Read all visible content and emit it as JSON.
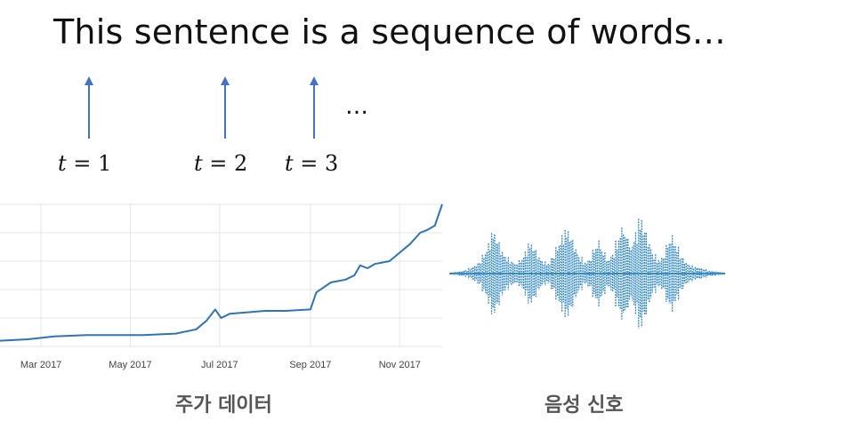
{
  "headline": "This sentence is a sequence of words…",
  "ellipsis": "…",
  "timesteps": [
    {
      "var": "t",
      "eq": " = 1"
    },
    {
      "var": "t",
      "eq": " = 2"
    },
    {
      "var": "t",
      "eq": " = 3"
    }
  ],
  "colors": {
    "arrow": "#4472C4",
    "line": "#2E75B6",
    "wave": "#1a7bbf",
    "grid": "#e6e6e6"
  },
  "stock_caption": "주가 데이터",
  "audio_caption": "음성 신호",
  "chart_data": {
    "type": "line",
    "title": "",
    "xlabel": "",
    "ylabel": "",
    "x_ticks": [
      "Mar 2017",
      "May 2017",
      "Jul 2017",
      "Sep 2017",
      "Nov 2017"
    ],
    "x_range": [
      "2017-02-01",
      "2017-11-30"
    ],
    "y_range": [
      0,
      100
    ],
    "grid": true,
    "series": [
      {
        "x": [
          "2017-02-01",
          "2017-02-20",
          "2017-03-10",
          "2017-04-01",
          "2017-04-20",
          "2017-05-10",
          "2017-06-01",
          "2017-06-15",
          "2017-06-22",
          "2017-06-28",
          "2017-07-02",
          "2017-07-08",
          "2017-07-20",
          "2017-08-01",
          "2017-08-15",
          "2017-09-01",
          "2017-09-05",
          "2017-09-15",
          "2017-09-25",
          "2017-10-01",
          "2017-10-05",
          "2017-10-10",
          "2017-10-15",
          "2017-10-20",
          "2017-10-25",
          "2017-11-01",
          "2017-11-08",
          "2017-11-15",
          "2017-11-20",
          "2017-11-25",
          "2017-11-30"
        ],
        "y": [
          4,
          5,
          7,
          8,
          8,
          8,
          9,
          12,
          18,
          26,
          20,
          23,
          24,
          25,
          25,
          26,
          38,
          45,
          47,
          50,
          57,
          55,
          58,
          59,
          60,
          66,
          72,
          80,
          82,
          85,
          100
        ]
      }
    ]
  },
  "audio_data": {
    "type": "waveform",
    "amplitudes": [
      0.02,
      0.03,
      0.04,
      0.06,
      0.1,
      0.14,
      0.2,
      0.35,
      0.55,
      0.75,
      0.6,
      0.4,
      0.3,
      0.22,
      0.18,
      0.25,
      0.4,
      0.55,
      0.45,
      0.3,
      0.22,
      0.18,
      0.3,
      0.5,
      0.7,
      0.8,
      0.65,
      0.45,
      0.3,
      0.2,
      0.25,
      0.45,
      0.6,
      0.4,
      0.25,
      0.35,
      0.6,
      0.85,
      0.7,
      0.5,
      0.75,
      1.0,
      0.8,
      0.55,
      0.35,
      0.25,
      0.3,
      0.55,
      0.7,
      0.5,
      0.3,
      0.2,
      0.15,
      0.12,
      0.1,
      0.08,
      0.05,
      0.04,
      0.03,
      0.02
    ]
  }
}
